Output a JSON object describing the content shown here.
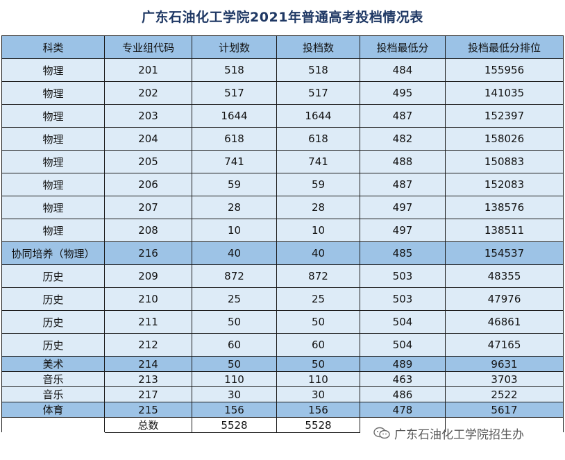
{
  "title": "广东石油化工学院2021年普通高考投档情况表",
  "columns": [
    "科类",
    "专业组代码",
    "计划数",
    "投档数",
    "投档最低分",
    "投档最低分排位"
  ],
  "rows": [
    [
      "物理",
      "201",
      "518",
      "518",
      "484",
      "155956"
    ],
    [
      "物理",
      "202",
      "517",
      "517",
      "495",
      "141035"
    ],
    [
      "物理",
      "203",
      "1644",
      "1644",
      "487",
      "152397"
    ],
    [
      "物理",
      "204",
      "618",
      "618",
      "482",
      "158026"
    ],
    [
      "物理",
      "205",
      "741",
      "741",
      "488",
      "150883"
    ],
    [
      "物理",
      "206",
      "59",
      "59",
      "487",
      "152083"
    ],
    [
      "物理",
      "207",
      "28",
      "28",
      "497",
      "138576"
    ],
    [
      "物理",
      "208",
      "10",
      "10",
      "497",
      "138511"
    ],
    [
      "协同培养（物理）",
      "216",
      "40",
      "40",
      "485",
      "154537"
    ],
    [
      "历史",
      "209",
      "872",
      "872",
      "503",
      "48355"
    ],
    [
      "历史",
      "210",
      "25",
      "25",
      "503",
      "47976"
    ],
    [
      "历史",
      "211",
      "50",
      "50",
      "504",
      "46861"
    ],
    [
      "历史",
      "212",
      "60",
      "60",
      "504",
      "47165"
    ],
    [
      "美术",
      "214",
      "50",
      "50",
      "489",
      "9631"
    ],
    [
      "音乐",
      "213",
      "110",
      "110",
      "463",
      "3703"
    ],
    [
      "音乐",
      "217",
      "30",
      "30",
      "486",
      "2522"
    ],
    [
      "体育",
      "215",
      "156",
      "156",
      "478",
      "5617"
    ]
  ],
  "total": {
    "label": "总数",
    "plan": "5528",
    "admitted": "5528"
  },
  "watermark": "广东石油化工学院招生办",
  "colors": {
    "header": "#9bc2e6",
    "row_light": "#ddebf7",
    "row_dark": "#9dc3e6",
    "title": "#1f3864"
  }
}
